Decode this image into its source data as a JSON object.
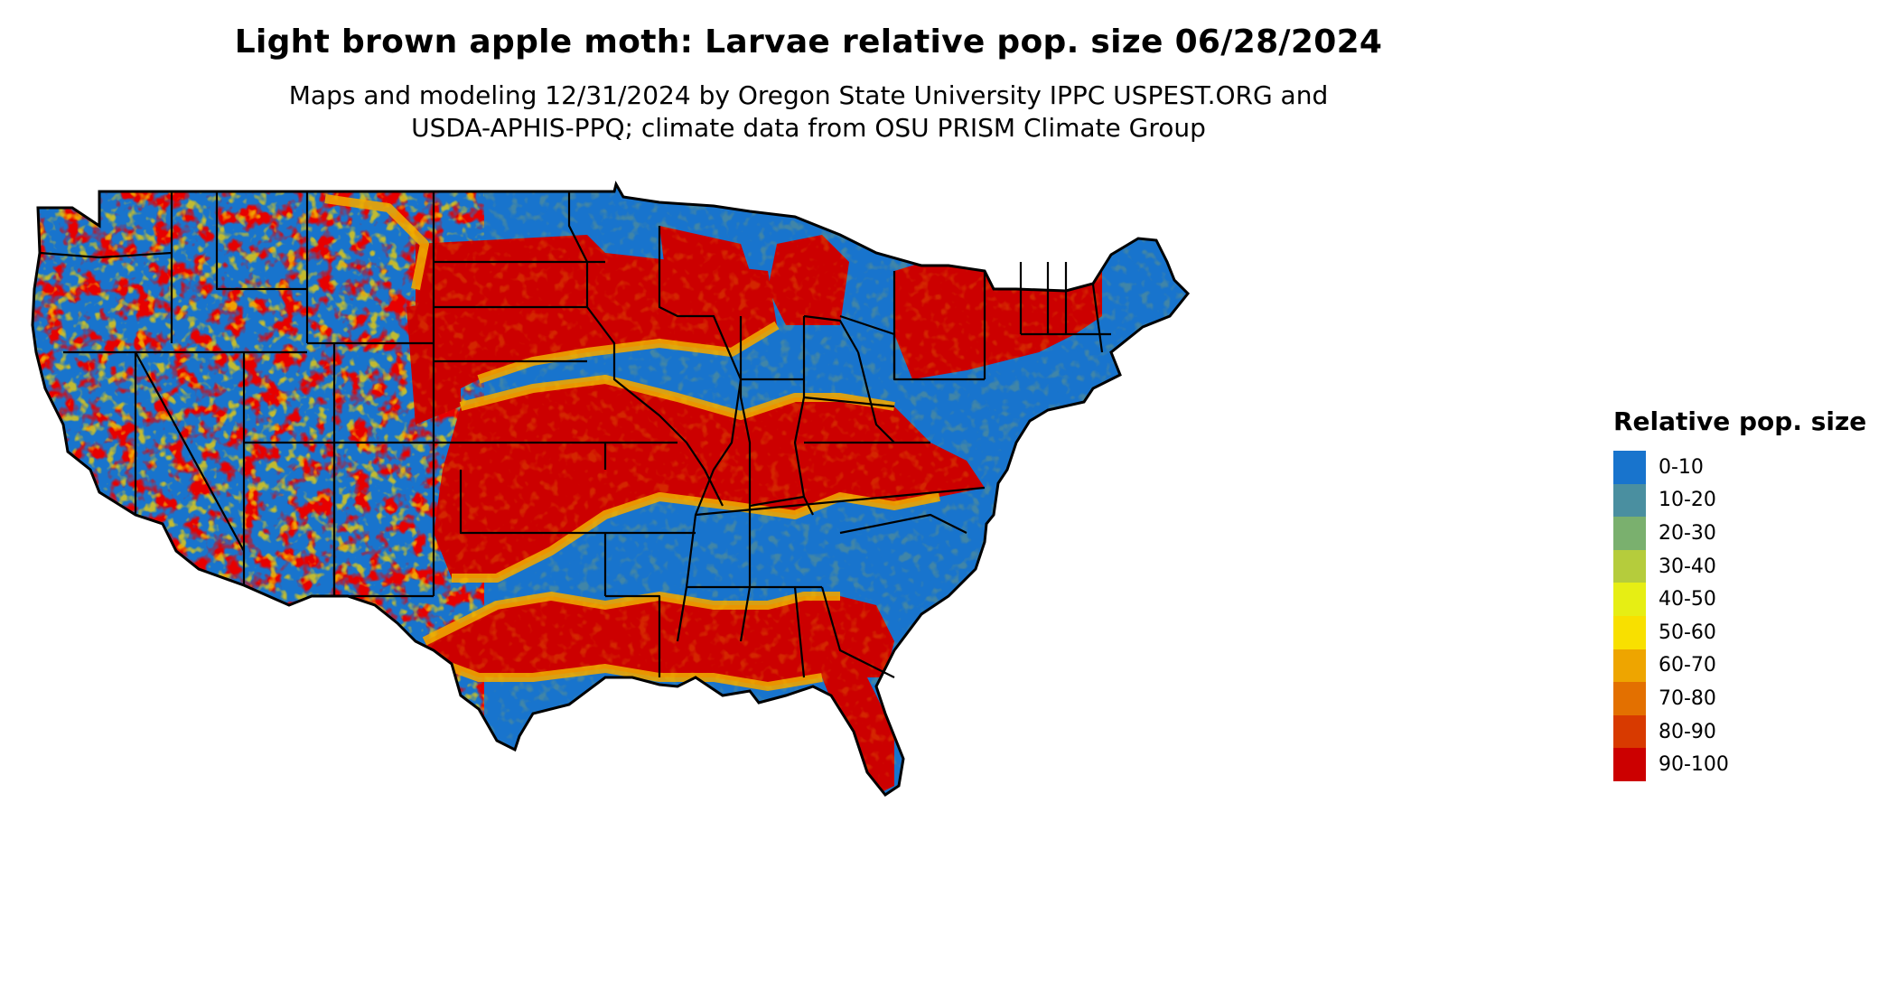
{
  "header": {
    "title": "Light brown apple moth: Larvae relative pop. size 06/28/2024",
    "subtitle_line1": "Maps and modeling 12/31/2024 by Oregon State University IPPC USPEST.ORG and",
    "subtitle_line2": "USDA-APHIS-PPQ; climate data from OSU PRISM Climate Group"
  },
  "map": {
    "region": "Contiguous United States",
    "background_color": "#1874cd"
  },
  "legend": {
    "title": "Relative pop. size",
    "items": [
      {
        "label": "0-10",
        "color": "#1874cd"
      },
      {
        "label": "10-20",
        "color": "#4a8fa0"
      },
      {
        "label": "20-30",
        "color": "#7ab06e"
      },
      {
        "label": "30-40",
        "color": "#b5cc3c"
      },
      {
        "label": "40-50",
        "color": "#e6ee14"
      },
      {
        "label": "50-60",
        "color": "#f8e000"
      },
      {
        "label": "60-70",
        "color": "#eea500"
      },
      {
        "label": "70-80",
        "color": "#e37000"
      },
      {
        "label": "80-90",
        "color": "#d83a00"
      },
      {
        "label": "90-100",
        "color": "#cc0000"
      }
    ]
  }
}
